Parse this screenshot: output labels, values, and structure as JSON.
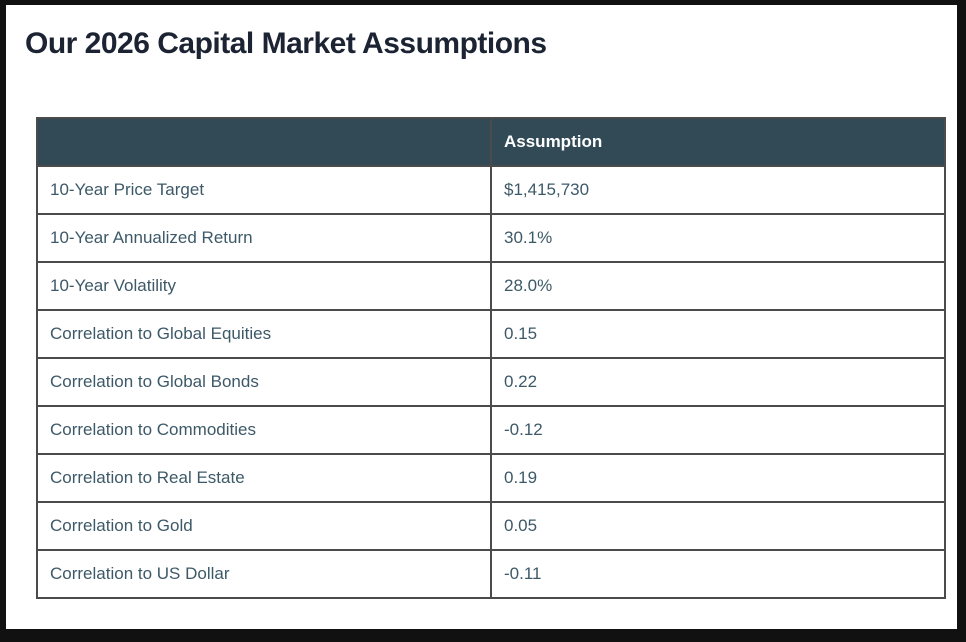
{
  "page": {
    "title": "Our 2026 Capital Market Assumptions"
  },
  "table": {
    "header": {
      "label_col": "",
      "value_col": "Assumption"
    },
    "rows": [
      {
        "label": "10-Year Price Target",
        "value": "$1,415,730"
      },
      {
        "label": "10-Year Annualized Return",
        "value": "30.1%"
      },
      {
        "label": "10-Year Volatility",
        "value": "28.0%"
      },
      {
        "label": "Correlation to Global Equities",
        "value": "0.15"
      },
      {
        "label": "Correlation to Global Bonds",
        "value": "0.22"
      },
      {
        "label": "Correlation to Commodities",
        "value": "-0.12"
      },
      {
        "label": "Correlation to Real Estate",
        "value": "0.19"
      },
      {
        "label": "Correlation to Gold",
        "value": "0.05"
      },
      {
        "label": "Correlation to US Dollar",
        "value": "-0.11"
      }
    ]
  },
  "colors": {
    "frame": "#111111",
    "page_bg": "#ffffff",
    "title_text": "#1c2333",
    "header_bg": "#314a56",
    "header_text": "#ffffff",
    "cell_text": "#3d5968",
    "table_border": "#4b4b4b"
  },
  "chart_data": {
    "type": "table",
    "title": "Our 2026 Capital Market Assumptions",
    "columns": [
      "",
      "Assumption"
    ],
    "rows": [
      [
        "10-Year Price Target",
        "$1,415,730"
      ],
      [
        "10-Year Annualized Return",
        "30.1%"
      ],
      [
        "10-Year Volatility",
        "28.0%"
      ],
      [
        "Correlation to Global Equities",
        "0.15"
      ],
      [
        "Correlation to Global Bonds",
        "0.22"
      ],
      [
        "Correlation to Commodities",
        "-0.12"
      ],
      [
        "Correlation to Real Estate",
        "0.19"
      ],
      [
        "Correlation to Gold",
        "0.05"
      ],
      [
        "Correlation to US Dollar",
        "-0.11"
      ]
    ]
  }
}
